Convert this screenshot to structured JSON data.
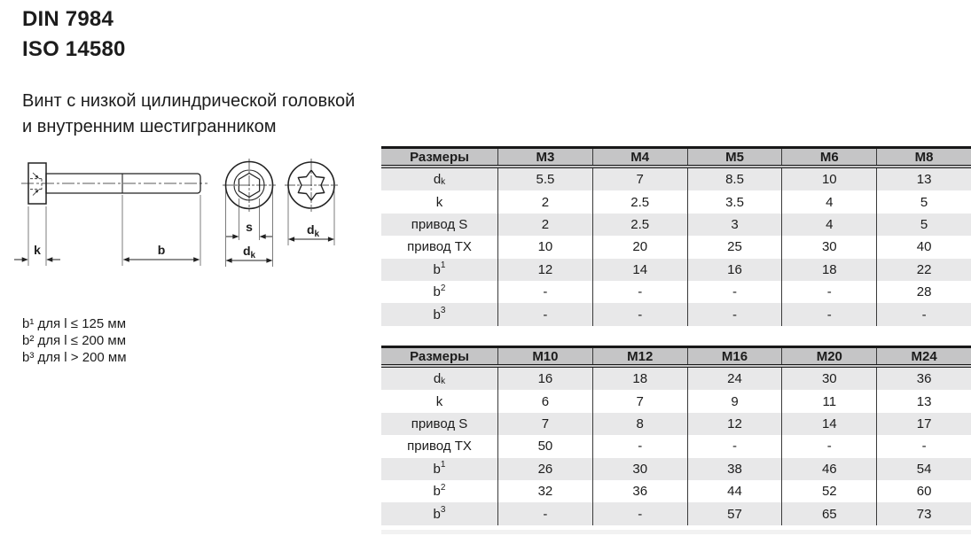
{
  "header": {
    "standard_din": "DIN 7984",
    "standard_iso": "ISO 14580"
  },
  "subtitle_lines": [
    "Винт с низкой цилиндрической головкой",
    "и внутренним шестигранником"
  ],
  "drawing": {
    "labels": {
      "k": "k",
      "b": "b",
      "s": "s",
      "d_base": "d",
      "d_sub": "k"
    }
  },
  "footnotes": [
    "b¹ для l ≤ 125 мм",
    "b² для l ≤ 200 мм",
    "b³ для l > 200 мм"
  ],
  "tables": [
    {
      "header": [
        "Размеры",
        "M3",
        "M4",
        "M5",
        "M6",
        "M8"
      ],
      "rows": [
        {
          "label": {
            "text": "d",
            "sub": "k"
          },
          "values": [
            "5.5",
            "7",
            "8.5",
            "10",
            "13"
          ]
        },
        {
          "label": {
            "text": "k"
          },
          "values": [
            "2",
            "2.5",
            "3.5",
            "4",
            "5"
          ]
        },
        {
          "label": {
            "text": "привод S"
          },
          "values": [
            "2",
            "2.5",
            "3",
            "4",
            "5"
          ]
        },
        {
          "label": {
            "text": "привод TX"
          },
          "values": [
            "10",
            "20",
            "25",
            "30",
            "40"
          ]
        },
        {
          "label": {
            "text": "b",
            "sup": "1"
          },
          "values": [
            "12",
            "14",
            "16",
            "18",
            "22"
          ]
        },
        {
          "label": {
            "text": "b",
            "sup": "2"
          },
          "values": [
            "-",
            "-",
            "-",
            "-",
            "28"
          ]
        },
        {
          "label": {
            "text": "b",
            "sup": "3"
          },
          "values": [
            "-",
            "-",
            "-",
            "-",
            "-"
          ]
        }
      ]
    },
    {
      "header": [
        "Размеры",
        "M10",
        "M12",
        "M16",
        "M20",
        "M24"
      ],
      "rows": [
        {
          "label": {
            "text": "d",
            "sub": "k"
          },
          "values": [
            "16",
            "18",
            "24",
            "30",
            "36"
          ]
        },
        {
          "label": {
            "text": "k"
          },
          "values": [
            "6",
            "7",
            "9",
            "11",
            "13"
          ]
        },
        {
          "label": {
            "text": "привод S"
          },
          "values": [
            "7",
            "8",
            "12",
            "14",
            "17"
          ]
        },
        {
          "label": {
            "text": "привод TX"
          },
          "values": [
            "50",
            "-",
            "-",
            "-",
            "-"
          ]
        },
        {
          "label": {
            "text": "b",
            "sup": "1"
          },
          "values": [
            "26",
            "30",
            "38",
            "46",
            "54"
          ]
        },
        {
          "label": {
            "text": "b",
            "sup": "2"
          },
          "values": [
            "32",
            "36",
            "44",
            "52",
            "60"
          ]
        },
        {
          "label": {
            "text": "b",
            "sup": "3"
          },
          "values": [
            "-",
            "-",
            "57",
            "65",
            "73"
          ]
        }
      ]
    }
  ],
  "colors": {
    "header_bg": "#c5c5c6",
    "row_alt_bg": "#e8e8e9",
    "table_border": "#3a3a3a",
    "text": "#1c1c1c"
  }
}
